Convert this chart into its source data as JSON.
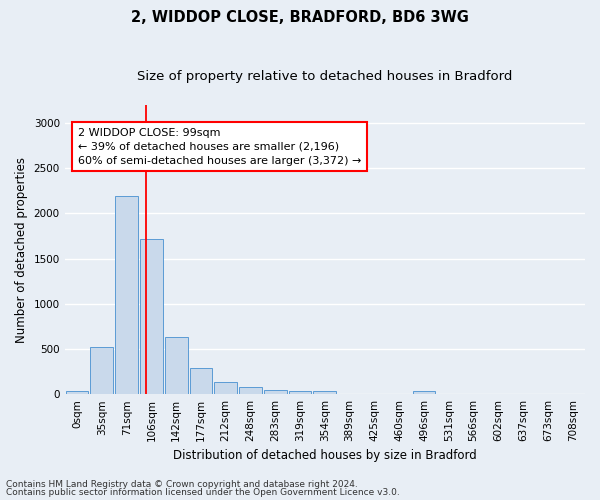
{
  "title": "2, WIDDOP CLOSE, BRADFORD, BD6 3WG",
  "subtitle": "Size of property relative to detached houses in Bradford",
  "xlabel": "Distribution of detached houses by size in Bradford",
  "ylabel": "Number of detached properties",
  "bar_color": "#c9d9eb",
  "bar_edge_color": "#5b9bd5",
  "categories": [
    "0sqm",
    "35sqm",
    "71sqm",
    "106sqm",
    "142sqm",
    "177sqm",
    "212sqm",
    "248sqm",
    "283sqm",
    "319sqm",
    "354sqm",
    "389sqm",
    "425sqm",
    "460sqm",
    "496sqm",
    "531sqm",
    "566sqm",
    "602sqm",
    "637sqm",
    "673sqm",
    "708sqm"
  ],
  "values": [
    30,
    520,
    2195,
    1720,
    635,
    285,
    130,
    75,
    45,
    35,
    30,
    0,
    0,
    0,
    30,
    0,
    0,
    0,
    0,
    0,
    0
  ],
  "ylim": [
    0,
    3200
  ],
  "yticks": [
    0,
    500,
    1000,
    1500,
    2000,
    2500,
    3000
  ],
  "annotation_box_text": "2 WIDDOP CLOSE: 99sqm\n← 39% of detached houses are smaller (2,196)\n60% of semi-detached houses are larger (3,372) →",
  "footer_line1": "Contains HM Land Registry data © Crown copyright and database right 2024.",
  "footer_line2": "Contains public sector information licensed under the Open Government Licence v3.0.",
  "background_color": "#e8eef5",
  "plot_background": "#e8eef5",
  "grid_color": "#ffffff",
  "title_fontsize": 10.5,
  "subtitle_fontsize": 9.5,
  "axis_label_fontsize": 8.5,
  "tick_fontsize": 7.5,
  "annotation_fontsize": 8,
  "footer_fontsize": 6.5
}
